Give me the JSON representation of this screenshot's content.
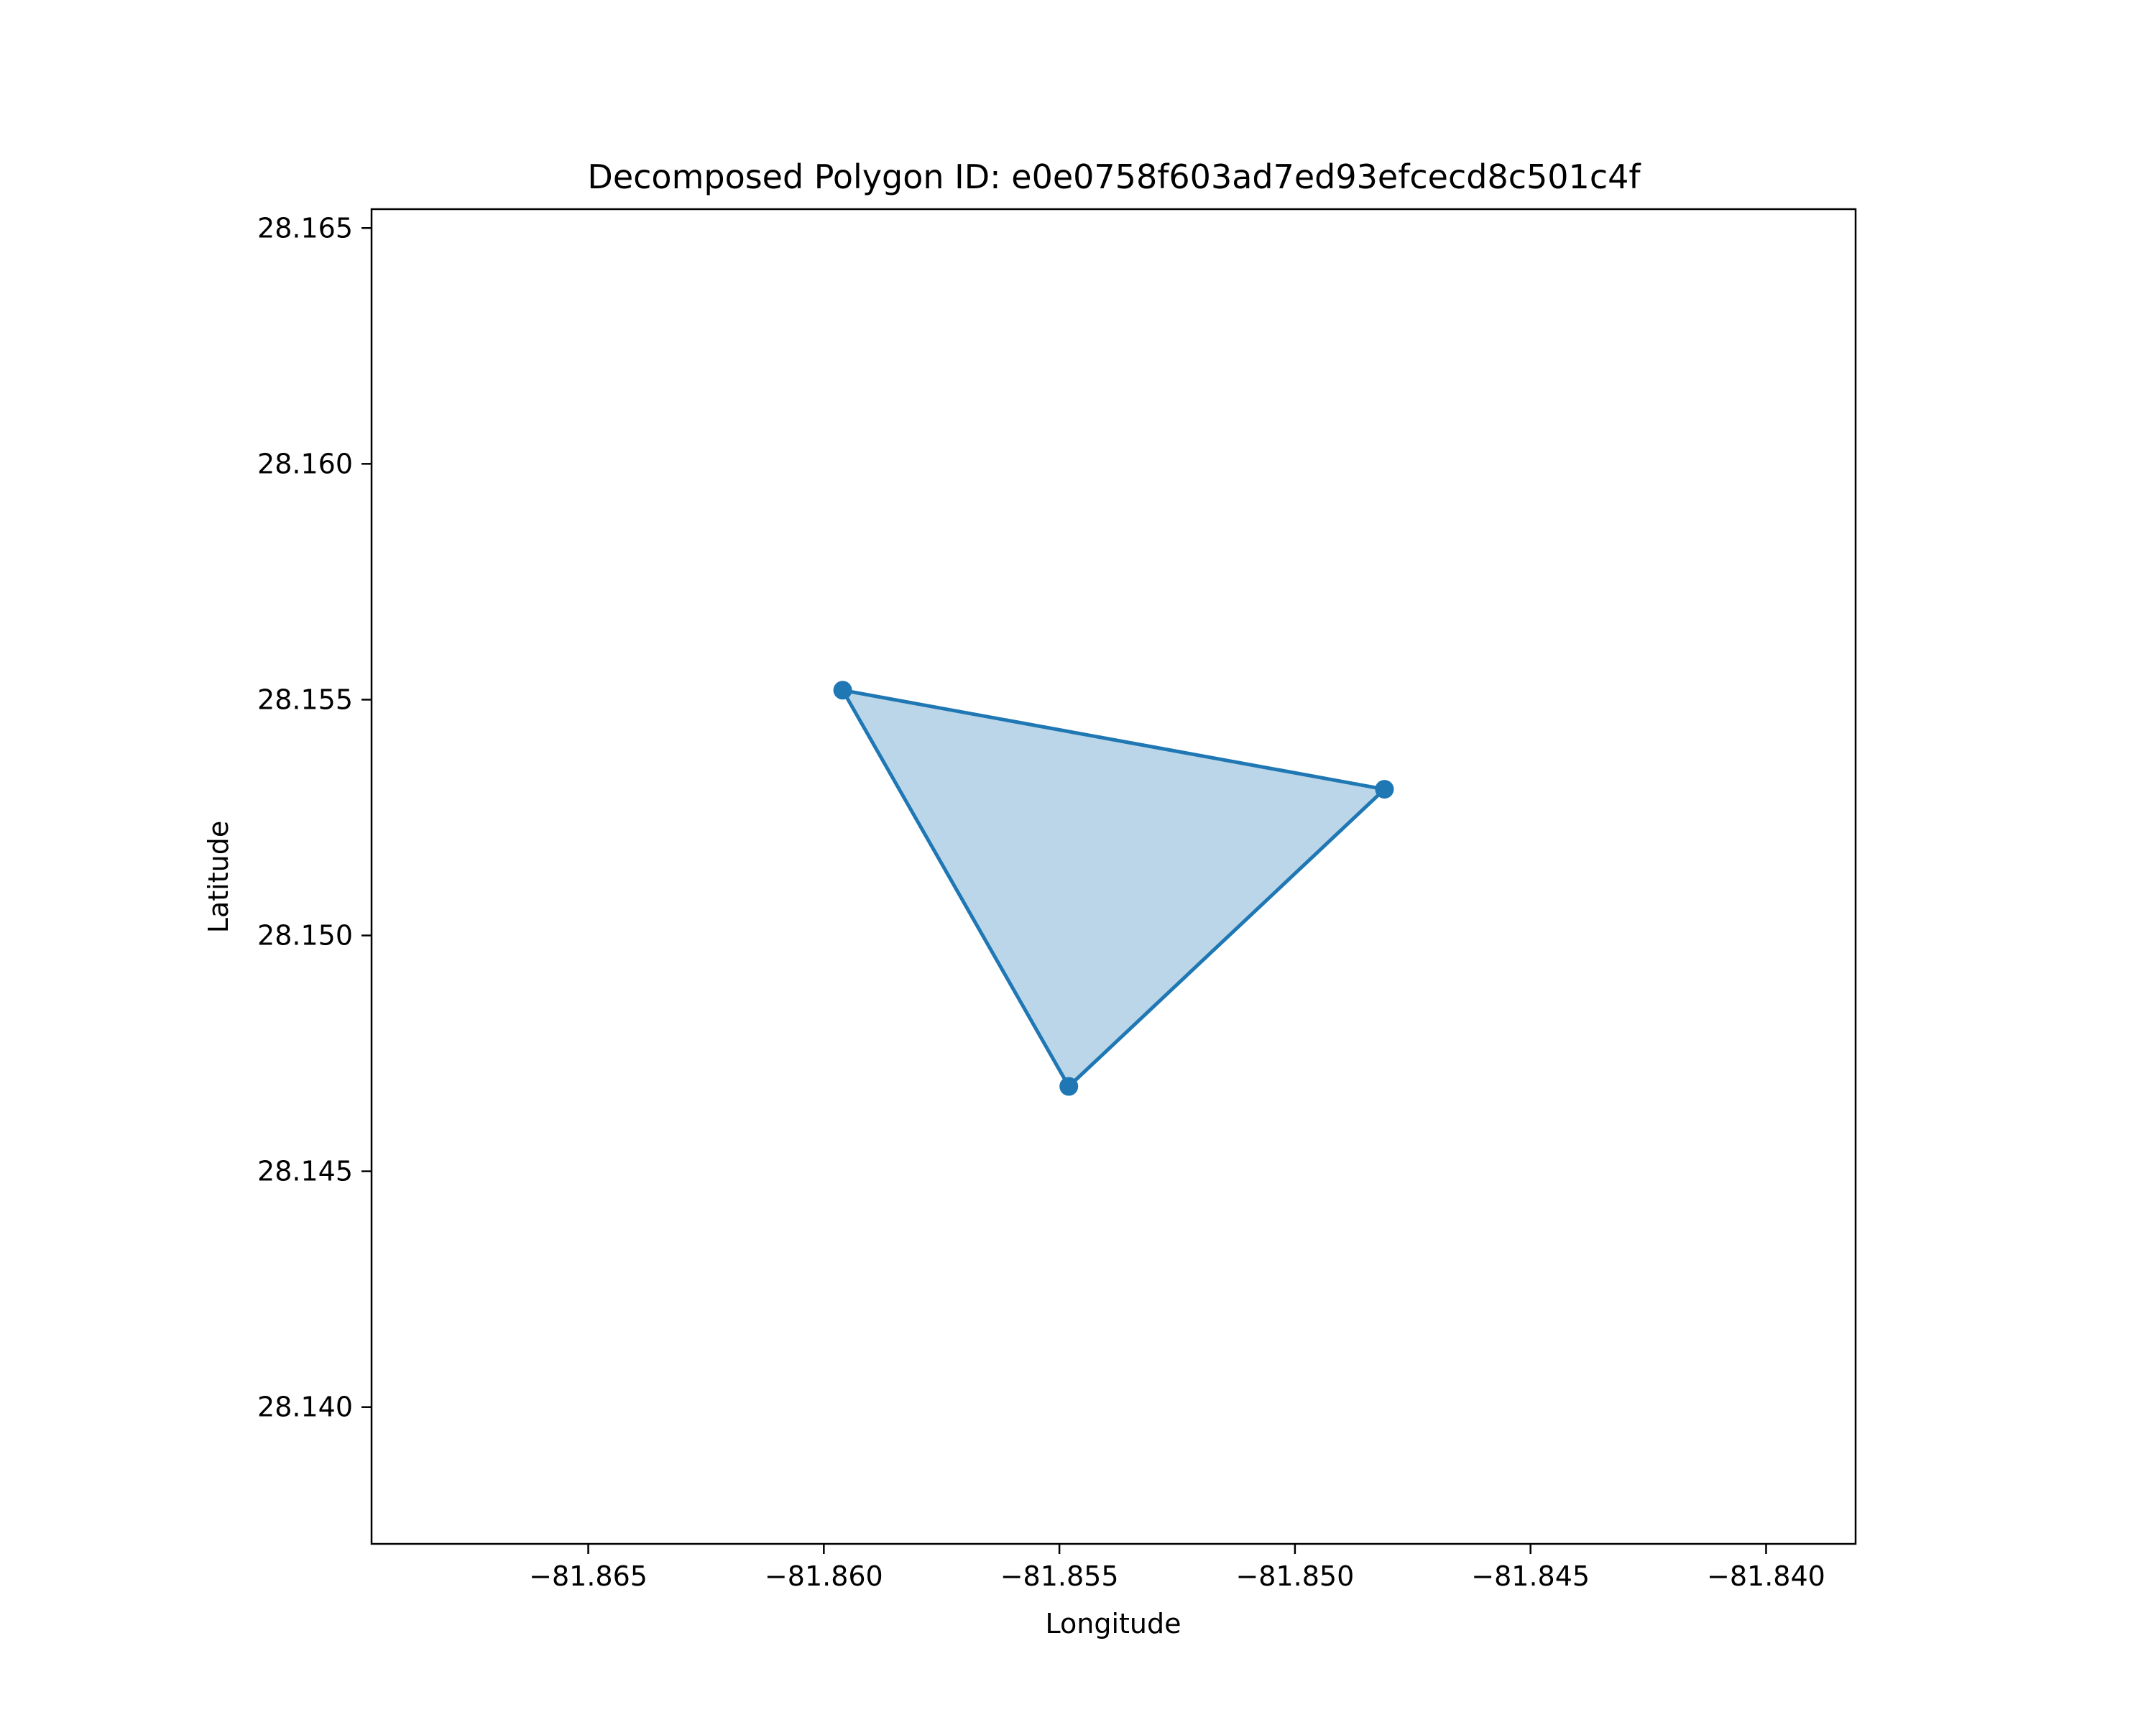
{
  "chart_data": {
    "type": "area",
    "title": "Decomposed Polygon ID: e0e0758f603ad7ed93efcecd8c501c4f",
    "xlabel": "Longitude",
    "ylabel": "Latitude",
    "xlim": [
      -81.8696,
      -81.8381
    ],
    "ylim": [
      28.1371,
      28.1654
    ],
    "x_ticks": [
      -81.865,
      -81.86,
      -81.855,
      -81.85,
      -81.845,
      -81.84
    ],
    "x_tick_labels": [
      "−81.865",
      "−81.860",
      "−81.855",
      "−81.850",
      "−81.845",
      "−81.840"
    ],
    "y_ticks": [
      28.14,
      28.145,
      28.15,
      28.155,
      28.16,
      28.165
    ],
    "y_tick_labels": [
      "28.140",
      "28.145",
      "28.150",
      "28.155",
      "28.160",
      "28.165"
    ],
    "grid": false,
    "series": [
      {
        "points": [
          {
            "x": -81.8596,
            "y": 28.1552
          },
          {
            "x": -81.8481,
            "y": 28.1531
          },
          {
            "x": -81.8548,
            "y": 28.1468
          }
        ],
        "color": "#1f77b4",
        "fill_color": "#1f77b4",
        "fill_opacity": 0.3
      }
    ]
  }
}
